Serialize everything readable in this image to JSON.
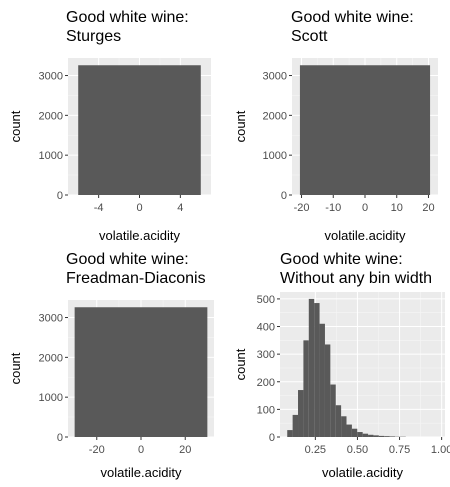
{
  "chart_data": [
    {
      "type": "bar",
      "title": [
        "Good white wine:",
        "Sturges"
      ],
      "xlabel": "volatile.acidity",
      "ylabel": "count",
      "xlim": [
        -7,
        7
      ],
      "ylim": [
        0,
        3440
      ],
      "xticks": [
        -4,
        0,
        4
      ],
      "xtick_labels": [
        "-4",
        "0",
        "4"
      ],
      "yticks": [
        0,
        1000,
        2000,
        3000
      ],
      "ytick_labels": [
        "0",
        "1000",
        "2000",
        "3000"
      ],
      "grid": true,
      "bins": [
        {
          "x0": -6,
          "x1": 6,
          "count": 3258
        }
      ]
    },
    {
      "type": "bar",
      "title": [
        "Good white wine:",
        "Scott"
      ],
      "xlabel": "volatile.acidity",
      "ylabel": "count",
      "xlim": [
        -23,
        23
      ],
      "ylim": [
        0,
        3440
      ],
      "xticks": [
        -20,
        -10,
        0,
        10,
        20
      ],
      "xtick_labels": [
        "-20",
        "-10",
        "0",
        "10",
        "20"
      ],
      "yticks": [
        0,
        1000,
        2000,
        3000
      ],
      "ytick_labels": [
        "0",
        "1000",
        "2000",
        "3000"
      ],
      "grid": true,
      "bins": [
        {
          "x0": -20.5,
          "x1": 20.5,
          "count": 3258
        }
      ]
    },
    {
      "type": "bar",
      "title": [
        "Good white wine:",
        "Freadman-Diaconis"
      ],
      "xlabel": "volatile.acidity",
      "ylabel": "count",
      "xlim": [
        -33,
        33
      ],
      "ylim": [
        0,
        3440
      ],
      "xticks": [
        -20,
        0,
        20
      ],
      "xtick_labels": [
        "-20",
        "0",
        "20"
      ],
      "yticks": [
        0,
        1000,
        2000,
        3000
      ],
      "ytick_labels": [
        "0",
        "1000",
        "2000",
        "3000"
      ],
      "grid": true,
      "bins": [
        {
          "x0": -30,
          "x1": 30,
          "count": 3258
        }
      ]
    },
    {
      "type": "bar",
      "title": [
        "Good white wine:",
        " Without any bin width"
      ],
      "xlabel": "volatile.acidity",
      "ylabel": "count",
      "xlim": [
        0.04,
        1.02
      ],
      "ylim": [
        0,
        525
      ],
      "xticks": [
        0.25,
        0.5,
        0.75,
        1.0
      ],
      "xtick_labels": [
        "0.25",
        "0.50",
        "0.75",
        "1.00"
      ],
      "yticks": [
        0,
        100,
        200,
        300,
        400,
        500
      ],
      "ytick_labels": [
        "0",
        "100",
        "200",
        "300",
        "400",
        "500"
      ],
      "grid": true,
      "bins": [
        {
          "x0": 0.083,
          "x1": 0.115,
          "count": 25
        },
        {
          "x0": 0.115,
          "x1": 0.147,
          "count": 80
        },
        {
          "x0": 0.147,
          "x1": 0.179,
          "count": 170
        },
        {
          "x0": 0.179,
          "x1": 0.211,
          "count": 350
        },
        {
          "x0": 0.211,
          "x1": 0.243,
          "count": 500
        },
        {
          "x0": 0.243,
          "x1": 0.275,
          "count": 485
        },
        {
          "x0": 0.275,
          "x1": 0.307,
          "count": 410
        },
        {
          "x0": 0.307,
          "x1": 0.339,
          "count": 335
        },
        {
          "x0": 0.339,
          "x1": 0.371,
          "count": 190
        },
        {
          "x0": 0.371,
          "x1": 0.403,
          "count": 115
        },
        {
          "x0": 0.403,
          "x1": 0.435,
          "count": 75
        },
        {
          "x0": 0.435,
          "x1": 0.467,
          "count": 45
        },
        {
          "x0": 0.467,
          "x1": 0.499,
          "count": 30
        },
        {
          "x0": 0.499,
          "x1": 0.531,
          "count": 18
        },
        {
          "x0": 0.531,
          "x1": 0.563,
          "count": 12
        },
        {
          "x0": 0.563,
          "x1": 0.595,
          "count": 8
        },
        {
          "x0": 0.595,
          "x1": 0.627,
          "count": 6
        },
        {
          "x0": 0.627,
          "x1": 0.659,
          "count": 4
        },
        {
          "x0": 0.659,
          "x1": 0.691,
          "count": 3
        },
        {
          "x0": 0.691,
          "x1": 0.723,
          "count": 2
        },
        {
          "x0": 0.723,
          "x1": 0.755,
          "count": 1
        },
        {
          "x0": 0.755,
          "x1": 0.787,
          "count": 1
        }
      ]
    }
  ]
}
